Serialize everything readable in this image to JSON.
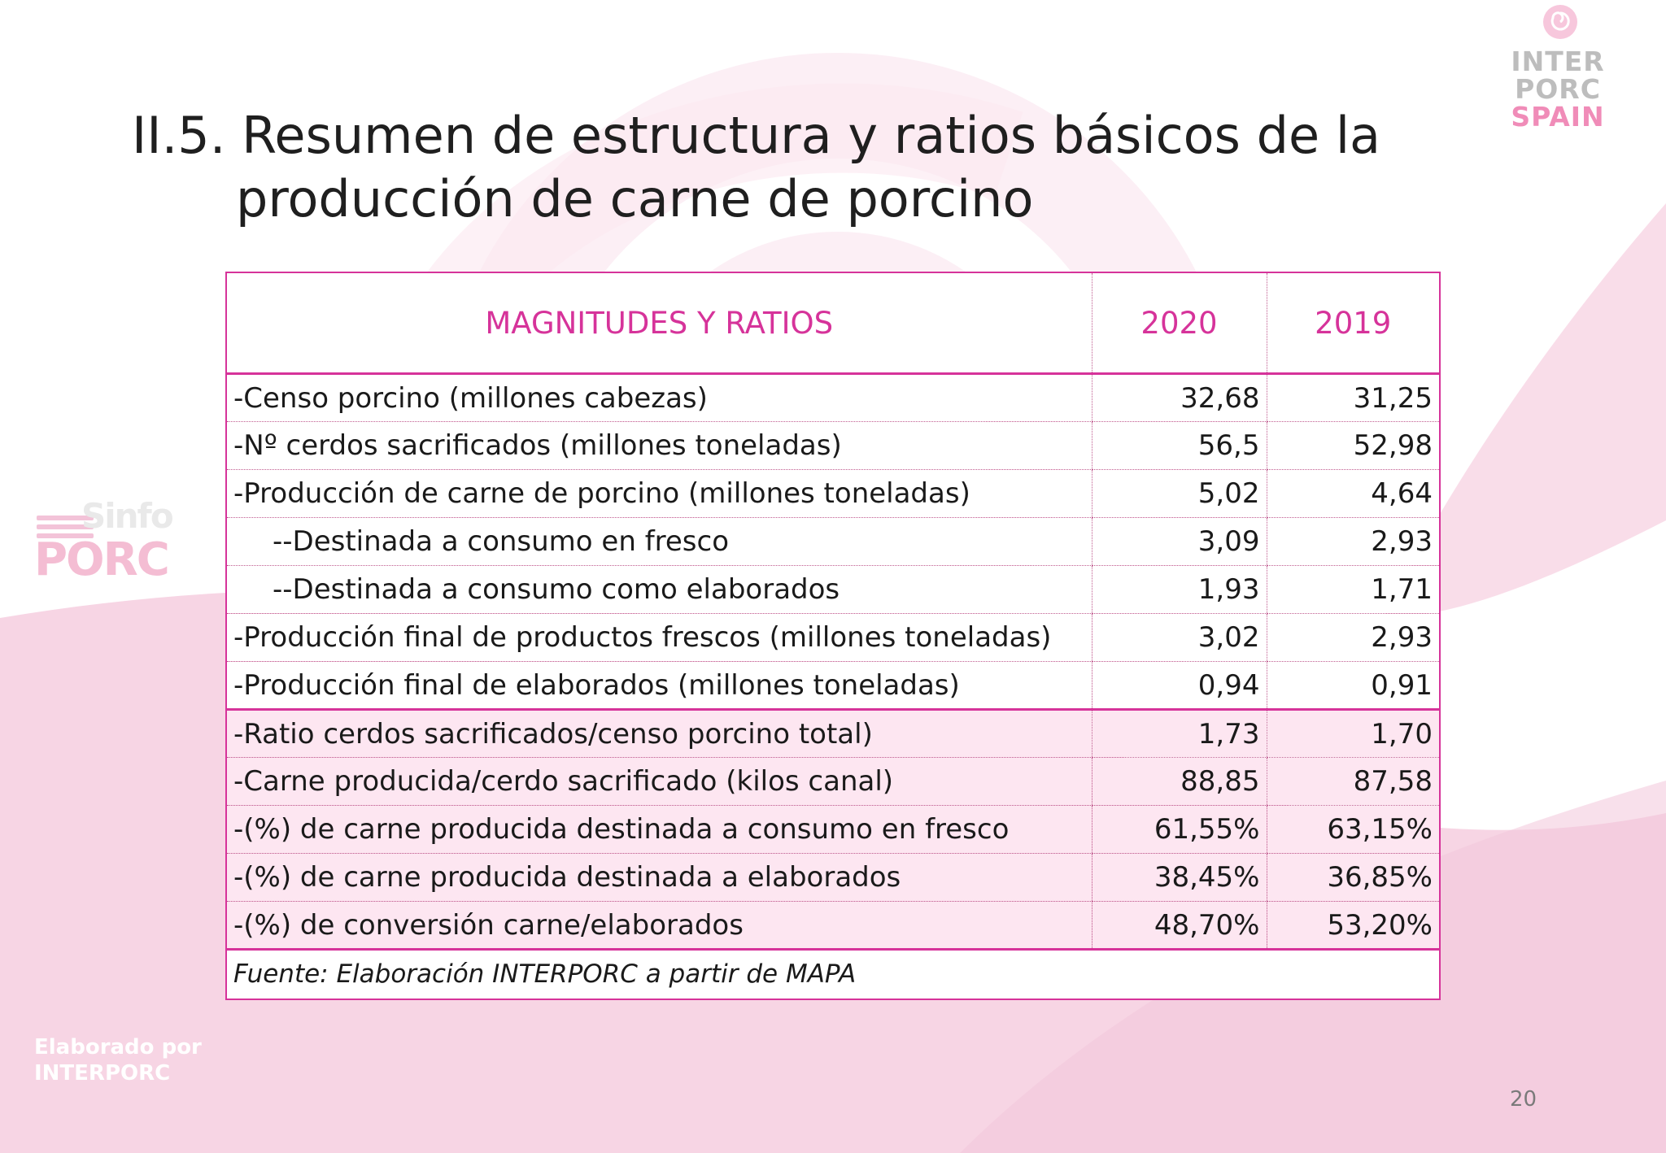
{
  "slide": {
    "title_line1": "II.5. Resumen de estructura y ratios básicos de la",
    "title_line2": "producción de carne de porcino",
    "page_number": "20",
    "credit_line1": "Elaborado por",
    "credit_line2": "INTERPORC"
  },
  "logo": {
    "line1": "INTER",
    "line2": "PORC",
    "line3": "SPAIN",
    "icon": "swirl-icon"
  },
  "side_logo": {
    "line1": "Sinfo",
    "line2": "PORC"
  },
  "table": {
    "headers": [
      "MAGNITUDES Y RATIOS",
      "2020",
      "2019"
    ],
    "rows": [
      {
        "label": "-Censo porcino (millones cabezas)",
        "v2020": "32,68",
        "v2019": "31,25"
      },
      {
        "label": "-Nº cerdos sacrificados (millones toneladas)",
        "v2020": "56,5",
        "v2019": "52,98"
      },
      {
        "label": "-Producción de carne de porcino (millones toneladas)",
        "v2020": "5,02",
        "v2019": "4,64"
      },
      {
        "label": "--Destinada a consumo en fresco",
        "v2020": "3,09",
        "v2019": "2,93"
      },
      {
        "label": "--Destinada a consumo como elaborados",
        "v2020": "1,93",
        "v2019": "1,71"
      },
      {
        "label": "-Producción final de productos frescos (millones toneladas)",
        "v2020": "3,02",
        "v2019": "2,93"
      },
      {
        "label": "-Producción final de elaborados (millones toneladas)",
        "v2020": "0,94",
        "v2019": "0,91"
      },
      {
        "label": "-Ratio cerdos sacrificados/censo porcino total)",
        "v2020": "1,73",
        "v2019": "1,70"
      },
      {
        "label": "-Carne producida/cerdo sacrificado (kilos canal)",
        "v2020": "88,85",
        "v2019": "87,58"
      },
      {
        "label": "-(%) de carne producida destinada a consumo en fresco",
        "v2020": "61,55%",
        "v2019": "63,15%"
      },
      {
        "label": "-(%) de carne producida destinada a elaborados",
        "v2020": "38,45%",
        "v2019": "36,85%"
      },
      {
        "label": "-(%) de conversión carne/elaborados",
        "v2020": "48,70%",
        "v2019": "53,20%"
      }
    ],
    "source": "Fuente: Elaboración INTERPORC a partir de MAPA"
  },
  "colors": {
    "accent": "#d6339a",
    "row_tint": "#fde6f1",
    "background_pink": "#f7d5e4"
  }
}
